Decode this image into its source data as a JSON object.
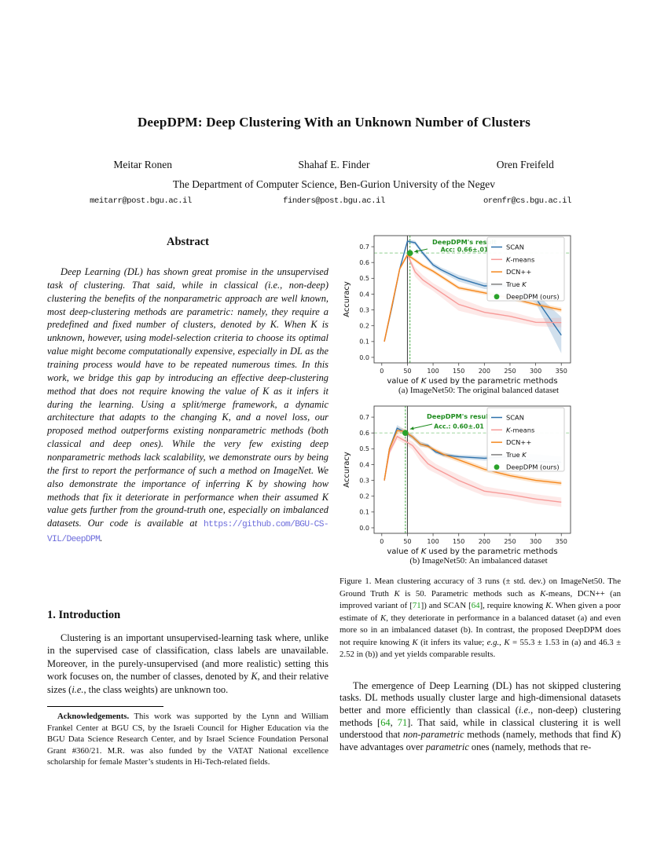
{
  "paper": {
    "title": "DeepDPM: Deep Clustering With an Unknown Number of Clusters",
    "authors": [
      {
        "name": "Meitar Ronen",
        "email": "meitarr@post.bgu.ac.il"
      },
      {
        "name": "Shahaf E. Finder",
        "email": "finders@post.bgu.ac.il"
      },
      {
        "name": "Oren Freifeld",
        "email": "orenfr@cs.bgu.ac.il"
      }
    ],
    "affiliation": "The Department of Computer Science, Ben-Gurion University of the Negev"
  },
  "colors": {
    "scan_blue": "#2e72ac",
    "kmeans_salmon": "#f79a98",
    "dcn_orange": "#f5871c",
    "true_k_gray": "#808080",
    "deepdpm_green": "#2ba22b",
    "annotation_green": "#1e8c1e",
    "cite_green": "#21a121",
    "link_purple": "#6c6cdb"
  },
  "abstract": {
    "heading": "Abstract",
    "body": [
      {
        "t": "Deep Learning (DL) has shown great promise in the unsupervised task of clustering. That said, while in classical (i.e., non-deep) clustering the benefits of the nonparametric approach are well known, most deep-clustering methods are parametric: namely, they require a predefined and fixed number of clusters, denoted by K. When K is unknown, however, using model-selection criteria to choose its optimal value might become computationally expensive, especially in DL as the training process would have to be repeated numerous times. In this work, we bridge this gap by introducing an effective deep-clustering method that does not require knowing the value of K as it infers it during the learning. Using a split/merge framework, a dynamic architecture that adapts to the changing K, and a novel loss, our proposed method outperforms existing nonparametric methods (both classical and deep ones). While the very few existing deep nonparametric methods lack scalability, we demonstrate ours by being the first to report the performance of such a method on ImageNet. We also demonstrate the importance of inferring K by showing how methods that fix it deteriorate in performance when their assumed K value gets further from the ground-truth one, especially on imbalanced datasets. Our code is available at "
      },
      {
        "t": "https://github.com/BGU-CS-VIL/DeepDPM",
        "s": "link"
      },
      {
        "t": "."
      }
    ]
  },
  "sections": {
    "intro_heading": "1. Introduction",
    "intro_body": [
      {
        "t": "Clustering is an important unsupervised-learning task where, unlike in the supervised case of classification, class labels are unavailable. Moreover, in the purely-unsupervised (and more realistic) setting this work focuses on, the number of classes, denoted by "
      },
      {
        "t": "K",
        "s": "i"
      },
      {
        "t": ", and their relative sizes ("
      },
      {
        "t": "i.e.",
        "s": "i"
      },
      {
        "t": ", the class weights) are unknown too."
      }
    ],
    "col2_body": [
      {
        "t": "The emergence of Deep Learning (DL) has not skipped clustering tasks. DL methods usually cluster large and high-dimensional datasets better and more efficiently than classical ("
      },
      {
        "t": "i.e.",
        "s": "i"
      },
      {
        "t": ", non-deep) clustering methods ["
      },
      {
        "t": "64",
        "s": "cite"
      },
      {
        "t": ", "
      },
      {
        "t": "71",
        "s": "cite"
      },
      {
        "t": "]. That said, while in classical clustering it is well understood that "
      },
      {
        "t": "non-parametric",
        "s": "i"
      },
      {
        "t": " methods (namely, methods that find "
      },
      {
        "t": "K",
        "s": "i"
      },
      {
        "t": ") have advantages over "
      },
      {
        "t": "parametric",
        "s": "i"
      },
      {
        "t": " ones (namely, methods that re-"
      }
    ]
  },
  "footnote": {
    "body": [
      {
        "t": "Acknowledgements.",
        "s": "b"
      },
      {
        "t": " This work was supported by the Lynn and William Frankel Center at BGU CS, by the Israeli Council for Higher Education via the BGU Data Science Research Center, and by Israel Science Foundation Personal Grant #360/21. M.R. was also funded by the VATAT National excellence scholarship for female Master’s students in Hi-Tech-related fields."
      }
    ]
  },
  "figure": {
    "subcaptions": [
      "(a) ImageNet50: The original balanced dataset",
      "(b) ImageNet50: An imbalanced dataset"
    ],
    "caption": [
      {
        "t": "Figure 1. Mean clustering accuracy of 3 runs (± std. dev.)  on ImageNet50. The Ground Truth "
      },
      {
        "t": "K",
        "s": "i"
      },
      {
        "t": " is 50. Parametric methods such as "
      },
      {
        "t": "K",
        "s": "i"
      },
      {
        "t": "-means, DCN++ (an improved variant of ["
      },
      {
        "t": "71",
        "s": "cite"
      },
      {
        "t": "]) and SCAN ["
      },
      {
        "t": "64",
        "s": "cite"
      },
      {
        "t": "], require knowing "
      },
      {
        "t": "K",
        "s": "i"
      },
      {
        "t": ". When given a poor estimate of "
      },
      {
        "t": "K",
        "s": "i"
      },
      {
        "t": ", they deteriorate in performance in a balanced dataset (a) and even more so in an imbalanced dataset (b). In contrast, the proposed DeepDPM does not require knowing "
      },
      {
        "t": "K",
        "s": "i"
      },
      {
        "t": " (it infers its value; "
      },
      {
        "t": "e.g.",
        "s": "i"
      },
      {
        "t": ", "
      },
      {
        "t": "K",
        "s": "i"
      },
      {
        "t": " = 55.3 ± 1.53 in (a) and 46.3 ± 2.52 in (b)) and yet yields comparable results."
      }
    ]
  },
  "chart_data": [
    {
      "type": "line",
      "title": "",
      "xlabel": "value of K used by the parametric methods",
      "xlabel_segs": [
        {
          "t": "value of "
        },
        {
          "t": "K",
          "i": true
        },
        {
          "t": " used by the parametric methods"
        }
      ],
      "ylabel": "Accuracy",
      "xlim": [
        -15,
        368
      ],
      "ylim": [
        -0.035,
        0.77
      ],
      "xticks": [
        0,
        50,
        100,
        150,
        200,
        250,
        300,
        350
      ],
      "yticks": [
        0.0,
        0.1,
        0.2,
        0.3,
        0.4,
        0.5,
        0.6,
        0.7
      ],
      "grid": false,
      "legend_position": "upper right",
      "true_k": 50,
      "deepdpm": {
        "k": 55,
        "acc": 0.66
      },
      "annotation": {
        "line1": "DeepDPM's result",
        "line2": "Acc: 0.66±.01"
      },
      "series": [
        {
          "name": "SCAN",
          "color": "#2e72ac",
          "x": [
            5,
            20,
            35,
            50,
            65,
            80,
            100,
            115,
            150,
            200,
            250,
            300,
            350
          ],
          "y": [
            0.1,
            0.32,
            0.56,
            0.735,
            0.725,
            0.66,
            0.585,
            0.555,
            0.5,
            0.452,
            0.453,
            0.375,
            0.14
          ],
          "err": [
            0.005,
            0.008,
            0.01,
            0.012,
            0.012,
            0.015,
            0.015,
            0.015,
            0.02,
            0.02,
            0.025,
            0.03,
            0.115
          ]
        },
        {
          "name": "K-means",
          "color": "#f79a98",
          "x": [
            5,
            20,
            35,
            50,
            65,
            80,
            100,
            150,
            200,
            250,
            300,
            350
          ],
          "y": [
            0.1,
            0.33,
            0.56,
            0.65,
            0.54,
            0.49,
            0.445,
            0.335,
            0.285,
            0.26,
            0.222,
            0.22
          ],
          "err": [
            0.005,
            0.008,
            0.01,
            0.012,
            0.03,
            0.03,
            0.025,
            0.04,
            0.03,
            0.03,
            0.025,
            0.03
          ]
        },
        {
          "name": "DCN++",
          "color": "#f5871c",
          "x": [
            5,
            20,
            35,
            50,
            65,
            80,
            100,
            150,
            200,
            250,
            300,
            350
          ],
          "y": [
            0.1,
            0.33,
            0.56,
            0.648,
            0.615,
            0.58,
            0.545,
            0.44,
            0.408,
            0.375,
            0.335,
            0.3
          ],
          "err": [
            0.005,
            0.008,
            0.01,
            0.01,
            0.012,
            0.012,
            0.012,
            0.012,
            0.012,
            0.012,
            0.012,
            0.015
          ]
        }
      ],
      "legend": [
        {
          "marker": "line",
          "color": "#2e72ac",
          "segs": [
            {
              "t": "SCAN"
            }
          ]
        },
        {
          "marker": "line",
          "color": "#f79a98",
          "segs": [
            {
              "t": "K",
              "i": true
            },
            {
              "t": "-means"
            }
          ]
        },
        {
          "marker": "line",
          "color": "#f5871c",
          "segs": [
            {
              "t": "DCN++"
            }
          ]
        },
        {
          "marker": "line",
          "color": "#808080",
          "segs": [
            {
              "t": "True "
            },
            {
              "t": "K",
              "i": true
            }
          ]
        },
        {
          "marker": "dot",
          "color": "#2ba22b",
          "segs": [
            {
              "t": "DeepDPM (ours)"
            }
          ]
        }
      ]
    },
    {
      "type": "line",
      "title": "",
      "xlabel": "value of K used by the parametric methods",
      "xlabel_segs": [
        {
          "t": "value of "
        },
        {
          "t": "K",
          "i": true
        },
        {
          "t": " used by the parametric methods"
        }
      ],
      "ylabel": "Accuracy",
      "xlim": [
        -15,
        368
      ],
      "ylim": [
        -0.035,
        0.77
      ],
      "xticks": [
        0,
        50,
        100,
        150,
        200,
        250,
        300,
        350
      ],
      "yticks": [
        0.0,
        0.1,
        0.2,
        0.3,
        0.4,
        0.5,
        0.6,
        0.7
      ],
      "grid": false,
      "legend_position": "upper right",
      "true_k": 50,
      "deepdpm": {
        "k": 46,
        "acc": 0.6
      },
      "annotation": {
        "line1": "DeepDPM's result",
        "line2": "Acc.: 0.60±.01"
      },
      "series": [
        {
          "name": "SCAN",
          "color": "#2e72ac",
          "x": [
            5,
            15,
            30,
            45,
            60,
            75,
            90,
            105,
            120,
            150,
            200,
            250,
            300,
            350
          ],
          "y": [
            0.3,
            0.5,
            0.63,
            0.605,
            0.575,
            0.53,
            0.52,
            0.48,
            0.462,
            0.45,
            0.44,
            0.45,
            0.42,
            0.415
          ],
          "err": [
            0.01,
            0.015,
            0.02,
            0.015,
            0.015,
            0.015,
            0.012,
            0.012,
            0.012,
            0.012,
            0.015,
            0.02,
            0.045,
            0.035
          ]
        },
        {
          "name": "K-means",
          "color": "#f79a98",
          "x": [
            5,
            15,
            30,
            45,
            60,
            75,
            90,
            105,
            120,
            150,
            200,
            250,
            300,
            350
          ],
          "y": [
            0.3,
            0.48,
            0.578,
            0.55,
            0.52,
            0.46,
            0.405,
            0.375,
            0.35,
            0.3,
            0.232,
            0.21,
            0.182,
            0.162
          ],
          "err": [
            0.01,
            0.02,
            0.02,
            0.02,
            0.025,
            0.04,
            0.035,
            0.03,
            0.03,
            0.035,
            0.03,
            0.025,
            0.03,
            0.03
          ]
        },
        {
          "name": "DCN++",
          "color": "#f5871c",
          "x": [
            5,
            15,
            30,
            45,
            60,
            75,
            90,
            105,
            120,
            150,
            200,
            250,
            300,
            350
          ],
          "y": [
            0.3,
            0.5,
            0.615,
            0.61,
            0.575,
            0.53,
            0.515,
            0.49,
            0.465,
            0.43,
            0.37,
            0.33,
            0.3,
            0.282
          ],
          "err": [
            0.01,
            0.015,
            0.02,
            0.015,
            0.015,
            0.015,
            0.012,
            0.012,
            0.015,
            0.015,
            0.015,
            0.015,
            0.015,
            0.015
          ]
        }
      ],
      "legend": [
        {
          "marker": "line",
          "color": "#2e72ac",
          "segs": [
            {
              "t": "SCAN"
            }
          ]
        },
        {
          "marker": "line",
          "color": "#f79a98",
          "segs": [
            {
              "t": "K",
              "i": true
            },
            {
              "t": "-means"
            }
          ]
        },
        {
          "marker": "line",
          "color": "#f5871c",
          "segs": [
            {
              "t": "DCN++"
            }
          ]
        },
        {
          "marker": "line",
          "color": "#808080",
          "segs": [
            {
              "t": "True "
            },
            {
              "t": "K",
              "i": true
            }
          ]
        },
        {
          "marker": "dot",
          "color": "#2ba22b",
          "segs": [
            {
              "t": "DeepDPM (ours)"
            }
          ]
        }
      ]
    }
  ]
}
